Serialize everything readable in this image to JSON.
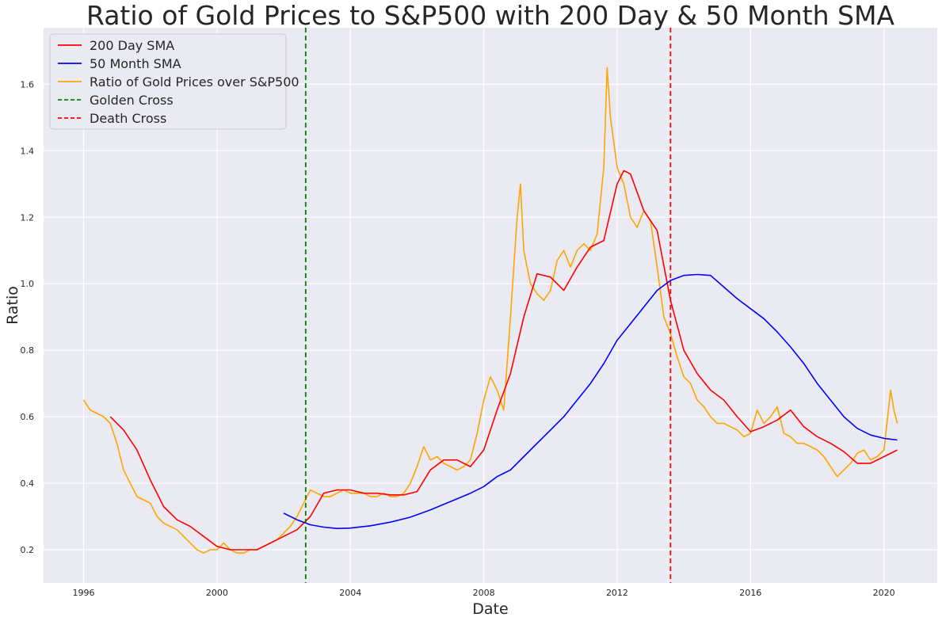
{
  "chart_data": {
    "type": "line",
    "title": "Ratio of Gold Prices to S&P500 with 200 Day & 50 Month SMA",
    "xlabel": "Date",
    "ylabel": "Ratio",
    "xlim": [
      1994.8,
      2021.6
    ],
    "ylim": [
      0.1,
      1.77
    ],
    "x_ticks": [
      1996,
      2000,
      2004,
      2008,
      2012,
      2016,
      2020
    ],
    "y_ticks": [
      0.2,
      0.4,
      0.6,
      0.8,
      1.0,
      1.2,
      1.4,
      1.6
    ],
    "grid": true,
    "legend_position": "upper-left",
    "series": [
      {
        "name": "200 Day SMA",
        "color": "#ff0000",
        "x": [
          1996.8,
          1997.2,
          1997.6,
          1998.0,
          1998.4,
          1998.8,
          1999.2,
          1999.6,
          2000.0,
          2000.4,
          2000.8,
          2001.2,
          2001.6,
          2002.0,
          2002.4,
          2002.8,
          2003.2,
          2003.6,
          2004.0,
          2004.4,
          2004.8,
          2005.2,
          2005.6,
          2006.0,
          2006.4,
          2006.8,
          2007.2,
          2007.6,
          2008.0,
          2008.4,
          2008.8,
          2009.2,
          2009.6,
          2010.0,
          2010.4,
          2010.8,
          2011.2,
          2011.6,
          2012.0,
          2012.2,
          2012.4,
          2012.8,
          2013.2,
          2013.6,
          2014.0,
          2014.4,
          2014.8,
          2015.2,
          2015.6,
          2016.0,
          2016.4,
          2016.8,
          2017.2,
          2017.6,
          2018.0,
          2018.4,
          2018.8,
          2019.2,
          2019.6,
          2020.0,
          2020.4
        ],
        "y": [
          0.6,
          0.56,
          0.5,
          0.41,
          0.33,
          0.29,
          0.27,
          0.24,
          0.21,
          0.2,
          0.2,
          0.2,
          0.22,
          0.24,
          0.26,
          0.3,
          0.37,
          0.38,
          0.38,
          0.37,
          0.37,
          0.365,
          0.365,
          0.375,
          0.44,
          0.47,
          0.47,
          0.45,
          0.5,
          0.62,
          0.73,
          0.9,
          1.03,
          1.02,
          0.98,
          1.05,
          1.11,
          1.13,
          1.3,
          1.34,
          1.33,
          1.22,
          1.16,
          0.95,
          0.8,
          0.73,
          0.68,
          0.65,
          0.6,
          0.555,
          0.57,
          0.59,
          0.62,
          0.57,
          0.54,
          0.52,
          0.495,
          0.46,
          0.46,
          0.48,
          0.5
        ]
      },
      {
        "name": "50 Month SMA",
        "color": "#0000ff",
        "x": [
          2002.0,
          2002.4,
          2002.8,
          2003.2,
          2003.6,
          2004.0,
          2004.6,
          2005.2,
          2005.8,
          2006.4,
          2007.0,
          2007.6,
          2008.0,
          2008.4,
          2008.8,
          2009.2,
          2009.6,
          2010.0,
          2010.4,
          2010.8,
          2011.2,
          2011.6,
          2012.0,
          2012.4,
          2012.8,
          2013.2,
          2013.6,
          2014.0,
          2014.4,
          2014.8,
          2015.2,
          2015.6,
          2016.0,
          2016.4,
          2016.8,
          2017.2,
          2017.6,
          2018.0,
          2018.4,
          2018.8,
          2019.2,
          2019.6,
          2020.0,
          2020.4
        ],
        "y": [
          0.31,
          0.29,
          0.275,
          0.268,
          0.264,
          0.265,
          0.272,
          0.283,
          0.298,
          0.32,
          0.345,
          0.37,
          0.39,
          0.42,
          0.44,
          0.48,
          0.52,
          0.56,
          0.6,
          0.65,
          0.7,
          0.76,
          0.83,
          0.88,
          0.93,
          0.98,
          1.01,
          1.025,
          1.028,
          1.025,
          0.99,
          0.955,
          0.925,
          0.895,
          0.855,
          0.81,
          0.76,
          0.7,
          0.65,
          0.6,
          0.565,
          0.545,
          0.535,
          0.53
        ]
      },
      {
        "name": "Ratio of Gold Prices over S&P500",
        "color": "#ffa500",
        "x": [
          1996.0,
          1996.2,
          1996.4,
          1996.6,
          1996.8,
          1997.0,
          1997.2,
          1997.4,
          1997.6,
          1997.8,
          1998.0,
          1998.2,
          1998.4,
          1998.6,
          1998.8,
          1999.0,
          1999.2,
          1999.4,
          1999.6,
          1999.8,
          2000.0,
          2000.2,
          2000.4,
          2000.6,
          2000.8,
          2001.0,
          2001.2,
          2001.4,
          2001.6,
          2001.8,
          2002.0,
          2002.2,
          2002.4,
          2002.6,
          2002.8,
          2003.0,
          2003.2,
          2003.4,
          2003.6,
          2003.8,
          2004.0,
          2004.2,
          2004.4,
          2004.6,
          2004.8,
          2005.0,
          2005.2,
          2005.4,
          2005.6,
          2005.8,
          2006.0,
          2006.2,
          2006.4,
          2006.6,
          2006.8,
          2007.0,
          2007.2,
          2007.4,
          2007.6,
          2007.8,
          2008.0,
          2008.2,
          2008.4,
          2008.6,
          2008.8,
          2009.0,
          2009.1,
          2009.2,
          2009.4,
          2009.6,
          2009.8,
          2010.0,
          2010.2,
          2010.4,
          2010.6,
          2010.8,
          2011.0,
          2011.2,
          2011.4,
          2011.6,
          2011.7,
          2011.8,
          2012.0,
          2012.2,
          2012.4,
          2012.6,
          2012.8,
          2013.0,
          2013.2,
          2013.4,
          2013.6,
          2013.8,
          2014.0,
          2014.2,
          2014.4,
          2014.6,
          2014.8,
          2015.0,
          2015.2,
          2015.4,
          2015.6,
          2015.8,
          2016.0,
          2016.2,
          2016.4,
          2016.6,
          2016.8,
          2017.0,
          2017.2,
          2017.4,
          2017.6,
          2017.8,
          2018.0,
          2018.2,
          2018.4,
          2018.6,
          2018.8,
          2019.0,
          2019.2,
          2019.4,
          2019.6,
          2019.8,
          2020.0,
          2020.2,
          2020.3,
          2020.4
        ],
        "y": [
          0.65,
          0.62,
          0.61,
          0.6,
          0.58,
          0.52,
          0.44,
          0.4,
          0.36,
          0.35,
          0.34,
          0.3,
          0.28,
          0.27,
          0.26,
          0.24,
          0.22,
          0.2,
          0.19,
          0.2,
          0.2,
          0.22,
          0.2,
          0.19,
          0.19,
          0.2,
          0.2,
          0.21,
          0.22,
          0.23,
          0.25,
          0.27,
          0.3,
          0.34,
          0.38,
          0.37,
          0.36,
          0.36,
          0.37,
          0.38,
          0.37,
          0.37,
          0.37,
          0.36,
          0.36,
          0.37,
          0.36,
          0.36,
          0.37,
          0.4,
          0.45,
          0.51,
          0.47,
          0.48,
          0.46,
          0.45,
          0.44,
          0.45,
          0.47,
          0.55,
          0.65,
          0.72,
          0.68,
          0.62,
          0.9,
          1.2,
          1.3,
          1.1,
          1.0,
          0.97,
          0.95,
          0.98,
          1.07,
          1.1,
          1.05,
          1.1,
          1.12,
          1.1,
          1.15,
          1.35,
          1.65,
          1.5,
          1.35,
          1.3,
          1.2,
          1.17,
          1.22,
          1.19,
          1.05,
          0.9,
          0.85,
          0.78,
          0.72,
          0.7,
          0.65,
          0.63,
          0.6,
          0.58,
          0.58,
          0.57,
          0.56,
          0.54,
          0.55,
          0.62,
          0.58,
          0.6,
          0.63,
          0.55,
          0.54,
          0.52,
          0.52,
          0.51,
          0.5,
          0.48,
          0.45,
          0.42,
          0.44,
          0.46,
          0.49,
          0.5,
          0.47,
          0.48,
          0.5,
          0.68,
          0.62,
          0.58
        ]
      }
    ],
    "vlines": [
      {
        "name": "Golden Cross",
        "x": 2002.66,
        "color": "#008000"
      },
      {
        "name": "Death Cross",
        "x": 2013.6,
        "color": "#ff0000"
      }
    ]
  }
}
